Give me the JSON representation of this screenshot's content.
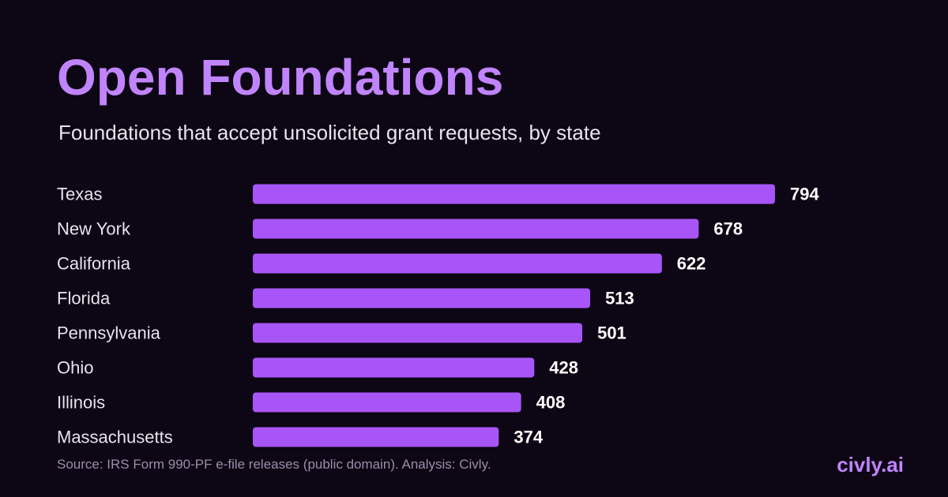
{
  "chart_data": {
    "type": "bar",
    "orientation": "horizontal",
    "title": "Open Foundations",
    "subtitle": "Foundations that accept unsolicited grant requests, by state",
    "categories": [
      "Texas",
      "New York",
      "California",
      "Florida",
      "Pennsylvania",
      "Ohio",
      "Illinois",
      "Massachusetts"
    ],
    "values": [
      794,
      678,
      622,
      513,
      501,
      428,
      408,
      374
    ],
    "xlim": [
      0,
      794
    ],
    "grid": false,
    "legend": "none",
    "colors": {
      "bar": "#a855f7",
      "title": "#c084fc",
      "background": "#0d0614"
    }
  },
  "footer": {
    "source": "Source: IRS Form 990-PF e-file releases (public domain). Analysis: Civly.",
    "brand": "civly.ai"
  }
}
